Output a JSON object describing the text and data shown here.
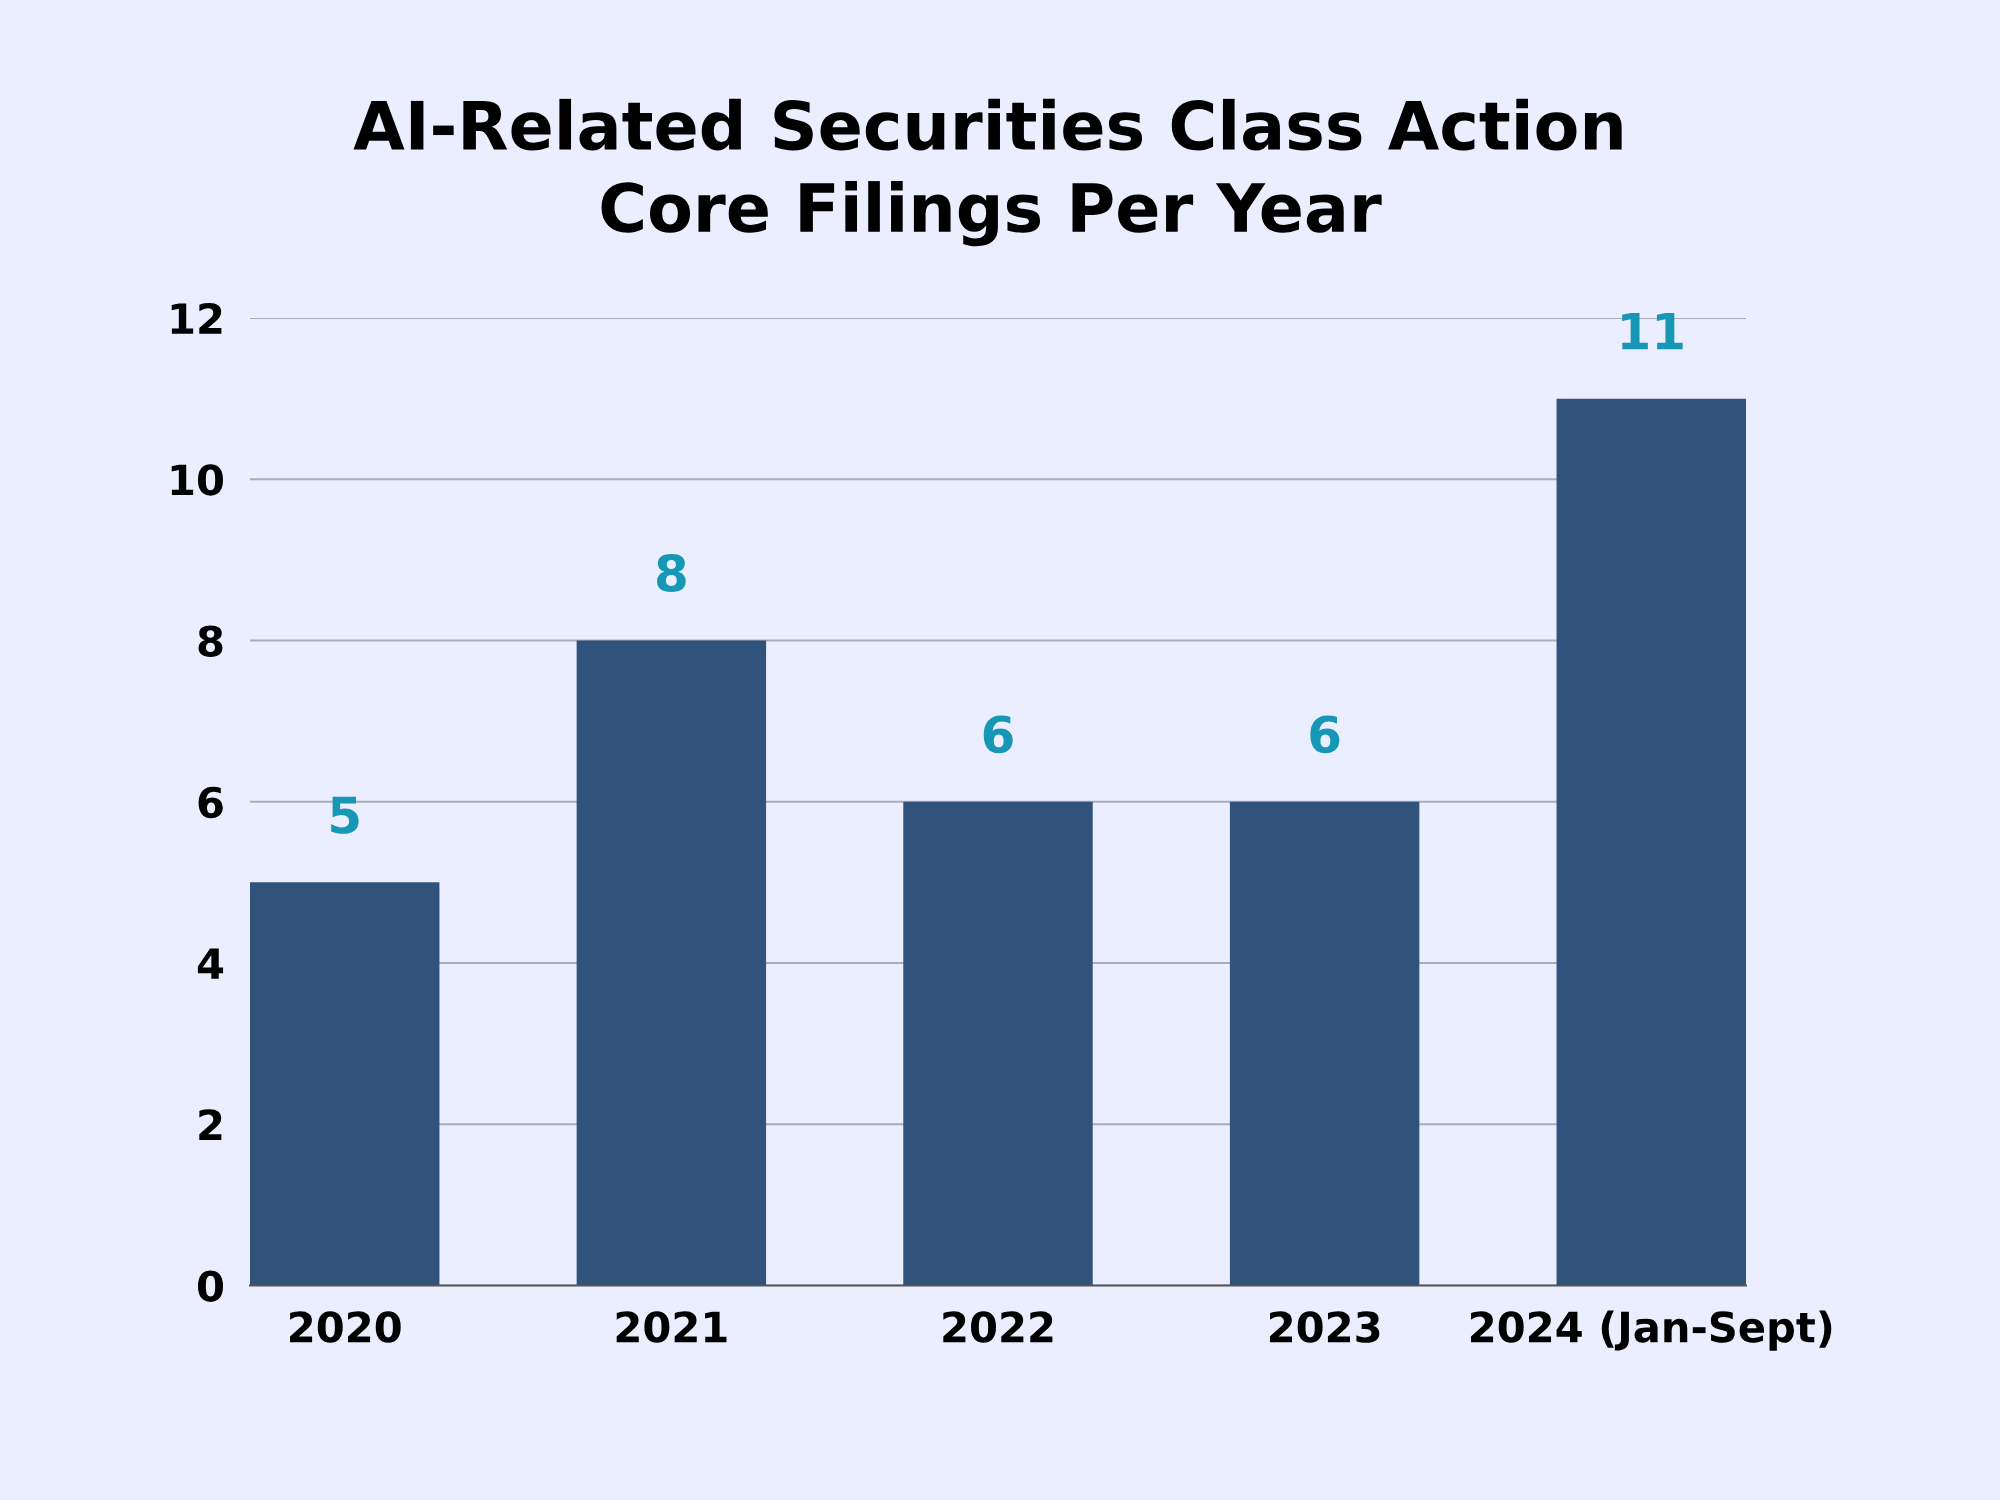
{
  "chart_data": {
    "type": "bar",
    "title": "AI-Related Securities Class Action\nCore Filings Per Year",
    "categories": [
      "2020",
      "2021",
      "2022",
      "2023",
      "2024 (Jan-Sept)"
    ],
    "values": [
      5,
      8,
      6,
      6,
      11
    ],
    "color": "#31527b",
    "ylim": [
      0,
      12
    ],
    "yticks": [
      0,
      2,
      4,
      6,
      8,
      10,
      12
    ],
    "grid": "y",
    "data_labels": true
  }
}
